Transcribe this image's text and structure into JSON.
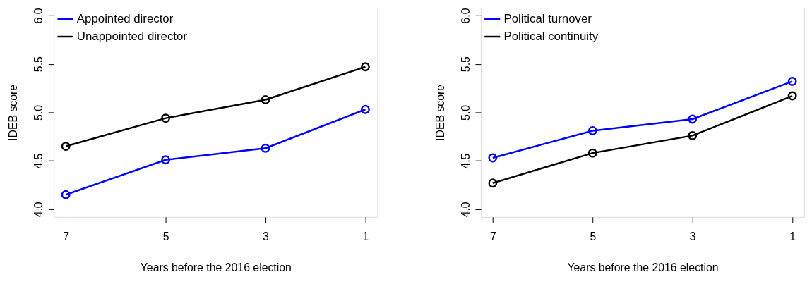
{
  "chart_data": [
    {
      "type": "line",
      "xlabel": "Years before the 2016 election",
      "ylabel": "IDEB score",
      "x": [
        7,
        5,
        3,
        1
      ],
      "xlim": [
        7.24,
        0.76
      ],
      "xticks": [
        7,
        5,
        3,
        1
      ],
      "ylim": [
        3.92,
        6.08
      ],
      "yticks": [
        {
          "value": 4,
          "label": "4.0"
        },
        {
          "value": 4.5,
          "label": "4.5"
        },
        {
          "value": 5,
          "label": "5.0"
        },
        {
          "value": 5.5,
          "label": "5.5"
        },
        {
          "value": 6,
          "label": "6.0"
        }
      ],
      "marker": "circle",
      "line_style": "solid",
      "grid": false,
      "legend": "top left",
      "series": [
        {
          "name": "Appointed director",
          "color": "#0000ff",
          "values": [
            4.15,
            4.51,
            4.63,
            5.03
          ]
        },
        {
          "name": "Unappointed director",
          "color": "#000000",
          "values": [
            4.65,
            4.94,
            5.13,
            5.47
          ]
        }
      ]
    },
    {
      "type": "line",
      "xlabel": "Years before the 2016 election",
      "ylabel": "IDEB score",
      "x": [
        7,
        5,
        3,
        1
      ],
      "xlim": [
        7.24,
        0.76
      ],
      "xticks": [
        7,
        5,
        3,
        1
      ],
      "ylim": [
        3.92,
        6.08
      ],
      "yticks": [
        {
          "value": 4,
          "label": "4.0"
        },
        {
          "value": 4.5,
          "label": "4.5"
        },
        {
          "value": 5,
          "label": "5.0"
        },
        {
          "value": 5.5,
          "label": "5.5"
        },
        {
          "value": 6,
          "label": "6.0"
        }
      ],
      "marker": "circle",
      "line_style": "solid",
      "grid": false,
      "legend": "top left",
      "series": [
        {
          "name": "Political turnover",
          "color": "#0000ff",
          "values": [
            4.53,
            4.81,
            4.93,
            5.32
          ]
        },
        {
          "name": "Political continuity",
          "color": "#000000",
          "values": [
            4.27,
            4.58,
            4.76,
            5.17
          ]
        }
      ]
    }
  ]
}
